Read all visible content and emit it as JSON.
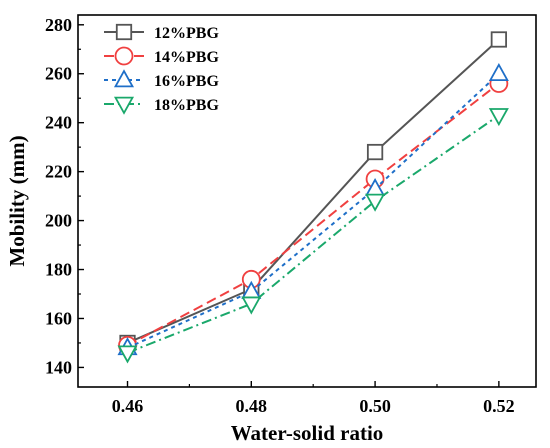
{
  "chart_data": {
    "type": "line",
    "title": "",
    "xlabel": "Water-solid ratio",
    "ylabel": "Mobility (mm)",
    "x": [
      0.46,
      0.48,
      0.5,
      0.52
    ],
    "x_tick_labels": [
      "0.46",
      "0.48",
      "0.50",
      "0.52"
    ],
    "xlim": [
      0.452,
      0.526
    ],
    "ylim": [
      132,
      284
    ],
    "y_ticks": [
      140,
      160,
      180,
      200,
      220,
      240,
      260,
      280
    ],
    "grid": false,
    "legend_position": "top-left",
    "series": [
      {
        "name": "12%PBG",
        "values": [
          150,
          172,
          228,
          274
        ],
        "color": "#555555",
        "marker": "square",
        "dash": "solid"
      },
      {
        "name": "14%PBG",
        "values": [
          149,
          176,
          217,
          256
        ],
        "color": "#f04040",
        "marker": "circle",
        "dash": "dashed"
      },
      {
        "name": "16%PBG",
        "values": [
          148,
          171,
          213,
          260
        ],
        "color": "#1f6fc8",
        "marker": "triangle-up",
        "dash": "dotted"
      },
      {
        "name": "18%PBG",
        "values": [
          146,
          166,
          208,
          243
        ],
        "color": "#1aa86b",
        "marker": "triangle-down",
        "dash": "dashdot"
      }
    ]
  }
}
